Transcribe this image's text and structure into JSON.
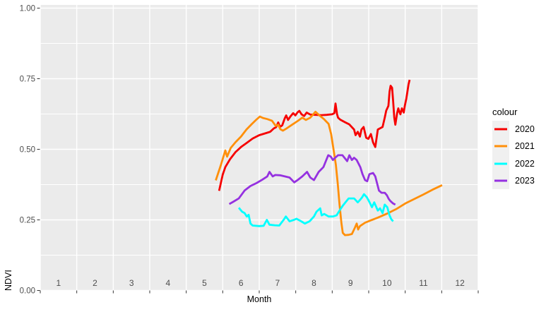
{
  "figure": {
    "y_axis_title": "NDVI",
    "x_axis_title": "Month",
    "x_tick_labels": [
      "1",
      "2",
      "3",
      "4",
      "5",
      "6",
      "7",
      "8",
      "9",
      "10",
      "11",
      "12"
    ],
    "y_tick_labels": [
      "0.00",
      "0.25",
      "0.50",
      "0.75",
      "1.00"
    ]
  },
  "legend": {
    "title": "colour",
    "items": [
      "2020",
      "2021",
      "2022",
      "2023"
    ]
  },
  "colors": {
    "panel_bg": "#ebebeb",
    "gridline": "#ffffff",
    "tick": "#333333",
    "axis_text": "#4d4d4d",
    "title_text": "#000000",
    "legend_key_bg": "#f0f0f0"
  },
  "chart_data": {
    "type": "line",
    "title": "",
    "xlabel": "Month",
    "ylabel": "NDVI",
    "xlim": [
      0.5,
      12.5
    ],
    "ylim": [
      0.0,
      1.0
    ],
    "x_breaks": [
      1,
      2,
      3,
      4,
      5,
      6,
      7,
      8,
      9,
      10,
      11,
      12
    ],
    "y_breaks": [
      0.0,
      0.25,
      0.5,
      0.75,
      1.0
    ],
    "y_minor_breaks": [
      0.125,
      0.375,
      0.625,
      0.875
    ],
    "grid": "white major and minor gridlines on gray panel",
    "legend_position": "right",
    "legend_title": "colour",
    "series": [
      {
        "name": "2020",
        "color": "#f60000",
        "points": [
          [
            5.4,
            0.353
          ],
          [
            5.5,
            0.41
          ],
          [
            5.57,
            0.437
          ],
          [
            5.7,
            0.465
          ],
          [
            5.85,
            0.49
          ],
          [
            6.0,
            0.508
          ],
          [
            6.15,
            0.522
          ],
          [
            6.32,
            0.538
          ],
          [
            6.5,
            0.55
          ],
          [
            6.65,
            0.556
          ],
          [
            6.8,
            0.562
          ],
          [
            6.9,
            0.574
          ],
          [
            6.96,
            0.578
          ],
          [
            7.02,
            0.595
          ],
          [
            7.07,
            0.579
          ],
          [
            7.13,
            0.585
          ],
          [
            7.2,
            0.61
          ],
          [
            7.24,
            0.62
          ],
          [
            7.29,
            0.604
          ],
          [
            7.36,
            0.617
          ],
          [
            7.43,
            0.628
          ],
          [
            7.49,
            0.62
          ],
          [
            7.55,
            0.631
          ],
          [
            7.6,
            0.636
          ],
          [
            7.66,
            0.624
          ],
          [
            7.73,
            0.618
          ],
          [
            7.8,
            0.63
          ],
          [
            7.9,
            0.623
          ],
          [
            8.05,
            0.622
          ],
          [
            8.2,
            0.621
          ],
          [
            8.35,
            0.622
          ],
          [
            8.5,
            0.624
          ],
          [
            8.56,
            0.628
          ],
          [
            8.59,
            0.662
          ],
          [
            8.63,
            0.625
          ],
          [
            8.66,
            0.612
          ],
          [
            8.72,
            0.605
          ],
          [
            8.85,
            0.596
          ],
          [
            8.97,
            0.588
          ],
          [
            9.1,
            0.57
          ],
          [
            9.14,
            0.55
          ],
          [
            9.2,
            0.562
          ],
          [
            9.26,
            0.545
          ],
          [
            9.3,
            0.57
          ],
          [
            9.36,
            0.579
          ],
          [
            9.43,
            0.541
          ],
          [
            9.49,
            0.537
          ],
          [
            9.56,
            0.554
          ],
          [
            9.62,
            0.524
          ],
          [
            9.68,
            0.508
          ],
          [
            9.75,
            0.57
          ],
          [
            9.88,
            0.579
          ],
          [
            9.94,
            0.612
          ],
          [
            9.98,
            0.637
          ],
          [
            10.04,
            0.654
          ],
          [
            10.07,
            0.704
          ],
          [
            10.1,
            0.725
          ],
          [
            10.14,
            0.718
          ],
          [
            10.17,
            0.67
          ],
          [
            10.2,
            0.612
          ],
          [
            10.23,
            0.587
          ],
          [
            10.28,
            0.629
          ],
          [
            10.31,
            0.645
          ],
          [
            10.34,
            0.633
          ],
          [
            10.37,
            0.624
          ],
          [
            10.41,
            0.645
          ],
          [
            10.46,
            0.63
          ],
          [
            10.49,
            0.654
          ],
          [
            10.53,
            0.679
          ],
          [
            10.56,
            0.704
          ],
          [
            10.59,
            0.729
          ],
          [
            10.62,
            0.746
          ]
        ]
      },
      {
        "name": "2021",
        "color": "#ff8f0a",
        "points": [
          [
            5.31,
            0.39
          ],
          [
            5.45,
            0.445
          ],
          [
            5.57,
            0.496
          ],
          [
            5.62,
            0.474
          ],
          [
            5.72,
            0.505
          ],
          [
            5.85,
            0.525
          ],
          [
            6.0,
            0.545
          ],
          [
            6.15,
            0.57
          ],
          [
            6.3,
            0.59
          ],
          [
            6.42,
            0.605
          ],
          [
            6.52,
            0.616
          ],
          [
            6.6,
            0.611
          ],
          [
            6.72,
            0.607
          ],
          [
            6.85,
            0.601
          ],
          [
            6.95,
            0.583
          ],
          [
            7.02,
            0.587
          ],
          [
            7.08,
            0.571
          ],
          [
            7.15,
            0.566
          ],
          [
            7.25,
            0.574
          ],
          [
            7.4,
            0.587
          ],
          [
            7.55,
            0.6
          ],
          [
            7.68,
            0.612
          ],
          [
            7.78,
            0.604
          ],
          [
            7.9,
            0.612
          ],
          [
            8.04,
            0.633
          ],
          [
            8.15,
            0.62
          ],
          [
            8.28,
            0.606
          ],
          [
            8.4,
            0.59
          ],
          [
            8.47,
            0.554
          ],
          [
            8.53,
            0.504
          ],
          [
            8.6,
            0.445
          ],
          [
            8.65,
            0.38
          ],
          [
            8.7,
            0.304
          ],
          [
            8.75,
            0.24
          ],
          [
            8.79,
            0.204
          ],
          [
            8.85,
            0.196
          ],
          [
            8.95,
            0.197
          ],
          [
            9.04,
            0.2
          ],
          [
            9.12,
            0.222
          ],
          [
            9.17,
            0.237
          ],
          [
            9.21,
            0.216
          ],
          [
            9.26,
            0.228
          ],
          [
            9.4,
            0.24
          ],
          [
            9.55,
            0.248
          ],
          [
            9.75,
            0.258
          ],
          [
            10.0,
            0.272
          ],
          [
            10.25,
            0.288
          ],
          [
            10.5,
            0.308
          ],
          [
            10.75,
            0.324
          ],
          [
            11.0,
            0.34
          ],
          [
            11.25,
            0.357
          ],
          [
            11.51,
            0.373
          ]
        ]
      },
      {
        "name": "2022",
        "color": "#00ffff",
        "points": [
          [
            5.94,
            0.293
          ],
          [
            6.03,
            0.279
          ],
          [
            6.1,
            0.274
          ],
          [
            6.16,
            0.262
          ],
          [
            6.21,
            0.268
          ],
          [
            6.26,
            0.237
          ],
          [
            6.32,
            0.23
          ],
          [
            6.5,
            0.228
          ],
          [
            6.62,
            0.229
          ],
          [
            6.71,
            0.25
          ],
          [
            6.78,
            0.233
          ],
          [
            6.92,
            0.231
          ],
          [
            7.05,
            0.23
          ],
          [
            7.18,
            0.252
          ],
          [
            7.23,
            0.262
          ],
          [
            7.33,
            0.245
          ],
          [
            7.45,
            0.25
          ],
          [
            7.52,
            0.254
          ],
          [
            7.65,
            0.245
          ],
          [
            7.75,
            0.237
          ],
          [
            7.88,
            0.245
          ],
          [
            8.0,
            0.262
          ],
          [
            8.07,
            0.279
          ],
          [
            8.17,
            0.291
          ],
          [
            8.21,
            0.266
          ],
          [
            8.28,
            0.271
          ],
          [
            8.4,
            0.262
          ],
          [
            8.52,
            0.262
          ],
          [
            8.62,
            0.266
          ],
          [
            8.72,
            0.287
          ],
          [
            8.8,
            0.302
          ],
          [
            8.88,
            0.315
          ],
          [
            8.95,
            0.326
          ],
          [
            9.1,
            0.326
          ],
          [
            9.2,
            0.312
          ],
          [
            9.27,
            0.322
          ],
          [
            9.32,
            0.33
          ],
          [
            9.37,
            0.341
          ],
          [
            9.45,
            0.33
          ],
          [
            9.5,
            0.318
          ],
          [
            9.59,
            0.295
          ],
          [
            9.65,
            0.312
          ],
          [
            9.75,
            0.283
          ],
          [
            9.81,
            0.291
          ],
          [
            9.88,
            0.274
          ],
          [
            9.94,
            0.304
          ],
          [
            10.01,
            0.295
          ],
          [
            10.07,
            0.266
          ],
          [
            10.12,
            0.252
          ],
          [
            10.17,
            0.245
          ]
        ]
      },
      {
        "name": "2023",
        "color": "#9531e0",
        "points": [
          [
            5.68,
            0.306
          ],
          [
            5.8,
            0.315
          ],
          [
            5.94,
            0.326
          ],
          [
            6.1,
            0.354
          ],
          [
            6.26,
            0.37
          ],
          [
            6.42,
            0.38
          ],
          [
            6.58,
            0.392
          ],
          [
            6.72,
            0.404
          ],
          [
            6.78,
            0.42
          ],
          [
            6.87,
            0.404
          ],
          [
            6.94,
            0.409
          ],
          [
            7.07,
            0.408
          ],
          [
            7.2,
            0.404
          ],
          [
            7.33,
            0.4
          ],
          [
            7.46,
            0.383
          ],
          [
            7.55,
            0.391
          ],
          [
            7.68,
            0.404
          ],
          [
            7.81,
            0.42
          ],
          [
            7.9,
            0.4
          ],
          [
            8.0,
            0.391
          ],
          [
            8.13,
            0.42
          ],
          [
            8.26,
            0.437
          ],
          [
            8.39,
            0.479
          ],
          [
            8.46,
            0.474
          ],
          [
            8.52,
            0.462
          ],
          [
            8.58,
            0.47
          ],
          [
            8.66,
            0.479
          ],
          [
            8.78,
            0.479
          ],
          [
            8.91,
            0.458
          ],
          [
            8.97,
            0.479
          ],
          [
            9.04,
            0.462
          ],
          [
            9.1,
            0.47
          ],
          [
            9.17,
            0.462
          ],
          [
            9.27,
            0.437
          ],
          [
            9.33,
            0.412
          ],
          [
            9.4,
            0.391
          ],
          [
            9.46,
            0.387
          ],
          [
            9.52,
            0.412
          ],
          [
            9.62,
            0.416
          ],
          [
            9.68,
            0.404
          ],
          [
            9.73,
            0.379
          ],
          [
            9.78,
            0.354
          ],
          [
            9.85,
            0.346
          ],
          [
            9.94,
            0.346
          ],
          [
            10.0,
            0.337
          ],
          [
            10.05,
            0.324
          ],
          [
            10.1,
            0.316
          ],
          [
            10.17,
            0.308
          ],
          [
            10.23,
            0.304
          ]
        ]
      }
    ]
  }
}
